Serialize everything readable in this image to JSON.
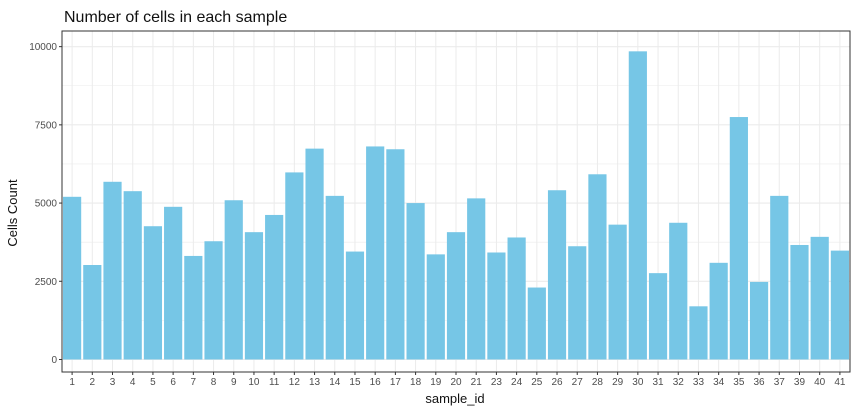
{
  "chart_data": {
    "type": "bar",
    "title": "Number of cells in each sample",
    "xlabel": "sample_id",
    "ylabel": "Cells Count",
    "categories": [
      "1",
      "2",
      "3",
      "4",
      "5",
      "6",
      "7",
      "8",
      "9",
      "10",
      "11",
      "12",
      "13",
      "14",
      "15",
      "16",
      "17",
      "18",
      "19",
      "20",
      "21",
      "23",
      "24",
      "25",
      "26",
      "27",
      "28",
      "29",
      "30",
      "31",
      "32",
      "33",
      "34",
      "35",
      "36",
      "37",
      "39",
      "40",
      "41"
    ],
    "values": [
      5200,
      3020,
      5680,
      5380,
      4260,
      4880,
      3310,
      3780,
      5090,
      4070,
      4620,
      5980,
      6740,
      5230,
      3450,
      6810,
      6720,
      5000,
      3360,
      4070,
      5150,
      3420,
      3900,
      2300,
      5410,
      3620,
      5920,
      4310,
      9850,
      2760,
      4370,
      1700,
      3090,
      7750,
      2480,
      5230,
      3660,
      3920,
      3480
    ],
    "yticks": [
      0,
      2500,
      5000,
      7500,
      10000
    ],
    "ylim": [
      -400,
      10500
    ],
    "grid": true,
    "bar_color": "#76c6e6",
    "panel_border_color": "#333333",
    "grid_color": "#ebebeb"
  }
}
